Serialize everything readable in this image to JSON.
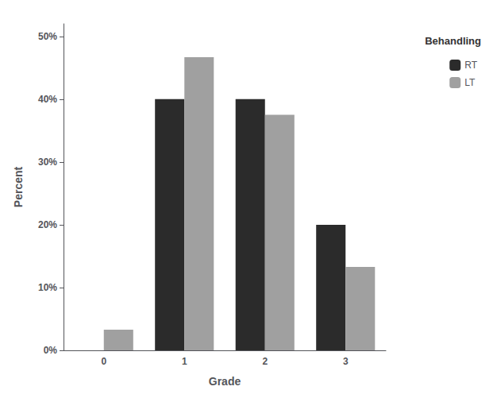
{
  "chart_data": {
    "type": "bar",
    "categories": [
      "0",
      "1",
      "2",
      "3"
    ],
    "series": [
      {
        "name": "RT",
        "color": "#2b2b2b",
        "values": [
          0.0,
          40.0,
          40.0,
          20.0
        ]
      },
      {
        "name": "LT",
        "color": "#a0a0a0",
        "values": [
          3.3,
          46.7,
          37.5,
          13.3
        ]
      }
    ],
    "xlabel": "Grade",
    "ylabel": "Percent",
    "legend_title": "Behandling",
    "ylim": [
      0,
      52
    ],
    "yticks": [
      {
        "value": 0,
        "label": "0%"
      },
      {
        "value": 10,
        "label": "10%"
      },
      {
        "value": 20,
        "label": "20%"
      },
      {
        "value": 30,
        "label": "30%"
      },
      {
        "value": 40,
        "label": "40%"
      },
      {
        "value": 50,
        "label": "50%"
      }
    ],
    "grid": false,
    "legend": "right"
  }
}
